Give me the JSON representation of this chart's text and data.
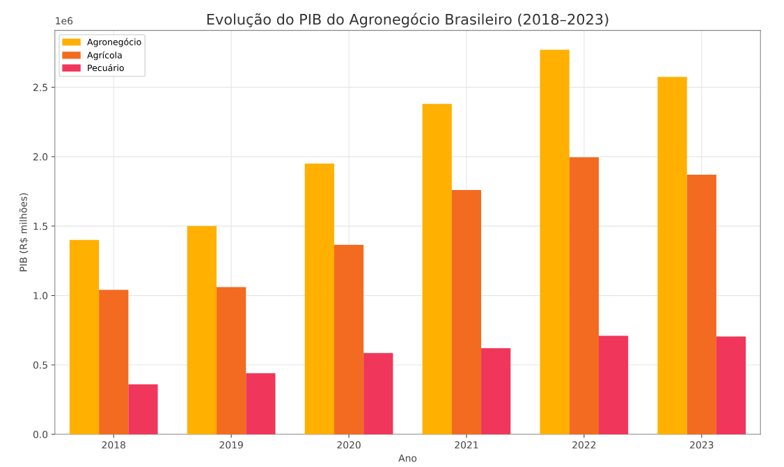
{
  "chart_data": {
    "type": "bar",
    "title": "Evolução do PIB do Agronegócio Brasileiro (2018–2023)",
    "xlabel": "Ano",
    "ylabel": "PIB (R$ milhões)",
    "categories": [
      "2018",
      "2019",
      "2020",
      "2021",
      "2022",
      "2023"
    ],
    "series": [
      {
        "name": "Agronegócio",
        "color": "#ffb000",
        "values": [
          1.4,
          1.5,
          1.95,
          2.38,
          2.77,
          2.575
        ]
      },
      {
        "name": "Agrícola",
        "color": "#f26b21",
        "values": [
          1.04,
          1.06,
          1.365,
          1.76,
          1.995,
          1.87
        ]
      },
      {
        "name": "Pecuário",
        "color": "#f0365a",
        "values": [
          0.36,
          0.44,
          0.585,
          0.62,
          0.71,
          0.705
        ]
      }
    ],
    "ylim": [
      0.0,
      2.91
    ],
    "yticks": [
      {
        "value": 0,
        "label": "0.0"
      },
      0.5,
      {
        "value": 1,
        "label": "1.0"
      },
      1.5,
      {
        "value": 2,
        "label": "2.0"
      },
      2.5
    ],
    "annotations": [
      "1e6"
    ],
    "grid": true,
    "legend": "top left"
  }
}
